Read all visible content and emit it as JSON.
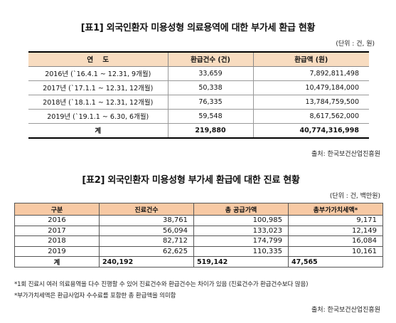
{
  "table1": {
    "title": "[표1] 외국인환자 미용성형 의료용역에 대한 부가세 환급 현황",
    "unit": "(단위 : 건, 원)",
    "headers": [
      "연    도",
      "환급건수 (건)",
      "환급액 (원)"
    ],
    "rows": [
      {
        "period": "2016년 (`16.4.1 ~ 12.31, 9개월)",
        "count": "33,659",
        "amount": "7,892,811,498"
      },
      {
        "period": "2017년 (`17.1.1 ~ 12.31, 12개월)",
        "count": "50,338",
        "amount": "10,479,184,000"
      },
      {
        "period": "2018년 (`18.1.1 ~ 12.31, 12개월)",
        "count": "76,335",
        "amount": "13,784,759,500"
      },
      {
        "period": "2019년 (`19.1.1 ~ 6.30, 6개월)",
        "count": "59,548",
        "amount": "8,617,562,000"
      }
    ],
    "total": {
      "label": "계",
      "count": "219,880",
      "amount": "40,774,316,998"
    },
    "source": "출처: 한국보건산업진흥원"
  },
  "table2": {
    "title": "[표2] 외국인환자 미용성형 부가세 환급에 대한 진료 현황",
    "unit": "(단위 : 건, 백만원)",
    "headers": [
      "구분",
      "진료건수",
      "총 공급가액",
      "총부가가치세액*"
    ],
    "rows": [
      {
        "year": "2016",
        "cases": "38,761",
        "supply": "100,985",
        "vat": "9,171"
      },
      {
        "year": "2017",
        "cases": "56,094",
        "supply": "133,023",
        "vat": "12,149"
      },
      {
        "year": "2018",
        "cases": "82,712",
        "supply": "174,799",
        "vat": "16,084"
      },
      {
        "year": "2019",
        "cases": "62,625",
        "supply": "110,335",
        "vat": "10,161"
      }
    ],
    "total": {
      "label": "계",
      "cases": "240,192",
      "supply": "519,142",
      "vat": "47,565"
    },
    "notes": [
      "*1회 진료시 여러 의료용역을 다수 진행할 수 있어 진료건수와 환급건수는 차이가 있음 (진료건수가 환급건수보다 많음)",
      "*부가가치세액은 환급사업자 수수료를 포함한 총 환급액을 의미함"
    ],
    "source": "출처: 한국보건산업진흥원"
  }
}
